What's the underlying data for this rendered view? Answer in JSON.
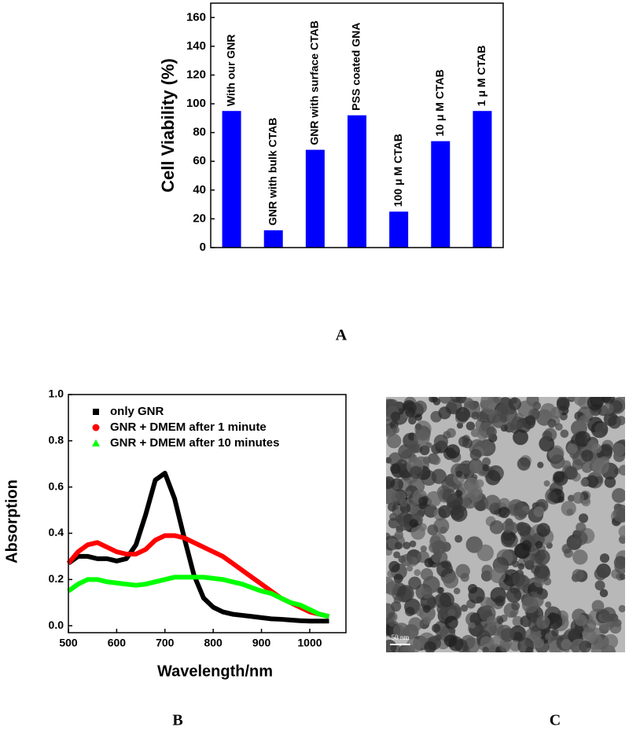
{
  "chart_data": [
    {
      "type": "bar",
      "ylabel": "Cell Viability (%)",
      "categories": [
        "With our GNR",
        "GNR with bulk CTAB",
        "GNR with surface CTAB",
        "PSS coated GNA",
        "100 μ M CTAB",
        "10 μ M CTAB",
        "1 μ M CTAB"
      ],
      "values": [
        95,
        12,
        68,
        92,
        25,
        74,
        95
      ],
      "color": "#0000ff",
      "ylim": [
        0,
        170
      ],
      "yticks": [
        0,
        20,
        40,
        60,
        80,
        100,
        120,
        140,
        160
      ]
    },
    {
      "type": "line",
      "xlabel": "Wavelength/nm",
      "ylabel": "Absorption",
      "x": [
        500,
        520,
        540,
        560,
        580,
        600,
        620,
        640,
        660,
        680,
        700,
        720,
        740,
        760,
        780,
        800,
        820,
        840,
        860,
        880,
        900,
        920,
        940,
        960,
        980,
        1000,
        1020,
        1040
      ],
      "series": [
        {
          "name": "only GNR",
          "color": "#000000",
          "marker": "square",
          "values": [
            0.27,
            0.3,
            0.3,
            0.29,
            0.29,
            0.28,
            0.29,
            0.35,
            0.48,
            0.63,
            0.66,
            0.55,
            0.38,
            0.22,
            0.12,
            0.08,
            0.06,
            0.05,
            0.045,
            0.04,
            0.035,
            0.03,
            0.028,
            0.025,
            0.022,
            0.02,
            0.02,
            0.02
          ]
        },
        {
          "name": "GNR + DMEM after 1 minute",
          "color": "#ff0000",
          "marker": "circle",
          "values": [
            0.27,
            0.32,
            0.35,
            0.36,
            0.34,
            0.32,
            0.31,
            0.31,
            0.33,
            0.37,
            0.39,
            0.39,
            0.38,
            0.36,
            0.34,
            0.32,
            0.3,
            0.27,
            0.24,
            0.21,
            0.18,
            0.15,
            0.12,
            0.1,
            0.08,
            0.06,
            0.05,
            0.04
          ]
        },
        {
          "name": "GNR + DMEM after 10 minutes",
          "color": "#00ff00",
          "marker": "triangle",
          "values": [
            0.15,
            0.18,
            0.2,
            0.2,
            0.19,
            0.185,
            0.18,
            0.175,
            0.18,
            0.19,
            0.2,
            0.21,
            0.21,
            0.21,
            0.21,
            0.205,
            0.2,
            0.19,
            0.18,
            0.165,
            0.15,
            0.14,
            0.12,
            0.1,
            0.09,
            0.07,
            0.05,
            0.04
          ]
        }
      ],
      "xlim": [
        500,
        1075
      ],
      "xticks": [
        500,
        600,
        700,
        800,
        900,
        1000
      ],
      "ylim": [
        -0.03,
        1.0
      ],
      "yticks": [
        {
          "value": 0,
          "label": "0.0"
        },
        {
          "value": 0.2,
          "label": "0.2"
        },
        {
          "value": 0.4,
          "label": "0.4"
        },
        {
          "value": 0.6,
          "label": "0.6"
        },
        {
          "value": 0.8,
          "label": "0.8"
        },
        {
          "value": 1,
          "label": "1.0"
        }
      ],
      "legend": "upper left"
    }
  ],
  "panels": {
    "a": "A",
    "b": "B",
    "c": "C"
  },
  "micrograph": {
    "scale_bar": "50 nm"
  }
}
